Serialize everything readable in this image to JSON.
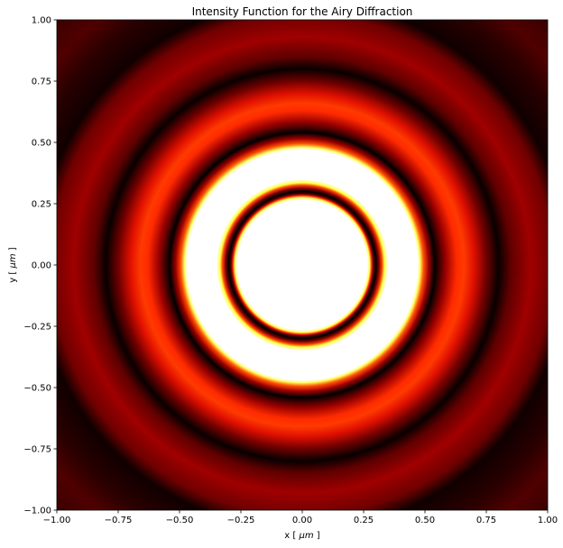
{
  "chart_data": {
    "type": "heatmap",
    "title": "Intensity Function for the Airy Diffraction",
    "xlabel_pre": "x [ ",
    "xlabel_unit": "μm",
    "xlabel_post": " ]",
    "ylabel_pre": "y [ ",
    "ylabel_unit": "μm",
    "ylabel_post": " ]",
    "xlim": [
      -1.0,
      1.0
    ],
    "ylim": [
      -1.0,
      1.0
    ],
    "x_ticks": [
      -1.0,
      -0.75,
      -0.5,
      -0.25,
      0.0,
      0.25,
      0.5,
      0.75,
      1.0
    ],
    "x_tick_labels": [
      "−1.00",
      "−0.75",
      "−0.50",
      "−0.25",
      "0.00",
      "0.25",
      "0.50",
      "0.75",
      "1.00"
    ],
    "y_ticks": [
      1.0,
      0.75,
      0.5,
      0.25,
      0.0,
      -0.25,
      -0.5,
      -0.75,
      -1.0
    ],
    "y_tick_labels": [
      "1.00",
      "0.75",
      "0.50",
      "0.25",
      "0.00",
      "−0.25",
      "−0.50",
      "−0.75",
      "−1.00"
    ],
    "colormap": "hot",
    "grid": false,
    "legend": "none",
    "pattern": {
      "function": "Airy (concentric rings, saturated color scale)",
      "saturated_disk_radius": 0.27,
      "first_dark_ring_radius": 0.3,
      "bright_ring_inner_radius": 0.33,
      "bright_ring_outer_radius": 0.48,
      "second_dark_ring_radius": 0.54,
      "outer_ring_radius": 0.66,
      "third_dark_ring_radius": 0.8,
      "fourth_ring_radius": 0.93
    }
  }
}
